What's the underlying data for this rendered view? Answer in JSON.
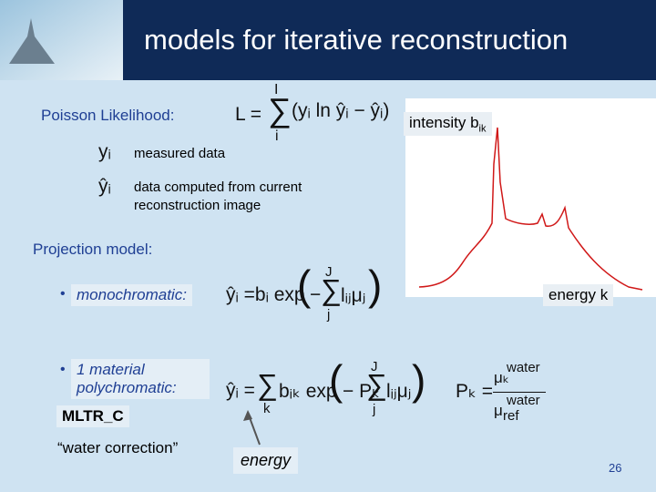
{
  "header": {
    "title": "models for iterative reconstruction"
  },
  "likelihood": {
    "label": "Poisson Likelihood:",
    "lhs": "L =",
    "sum": "∑",
    "sum_top": "I",
    "sum_bottom": "i",
    "body": "(yᵢ ln ŷᵢ − ŷᵢ)"
  },
  "definitions": [
    {
      "symbol": "yᵢ",
      "text": "measured data"
    },
    {
      "symbol": "ŷᵢ",
      "text": "data computed from current reconstruction image"
    }
  ],
  "projection": {
    "label": "Projection model:",
    "mono": {
      "label": "monochromatic:",
      "lhs": "ŷᵢ =bᵢ exp",
      "open": "(",
      "minus": "−",
      "sum": "∑",
      "sum_top": "J",
      "sum_bottom": "j",
      "body": "lᵢⱼμⱼ",
      "close": ")"
    },
    "poly": {
      "label": "1 material polychromatic:",
      "lhs": "ŷᵢ =",
      "sum1": "∑",
      "sum1_bottom": "k",
      "mid": "bᵢₖ exp",
      "open": "(",
      "minus": "− Pₖ",
      "sum2": "∑",
      "sum2_top": "J",
      "sum2_bottom": "j",
      "body": "lᵢⱼμⱼ",
      "close": ")"
    },
    "water": {
      "lhs": "Pₖ =",
      "num": "μₖ",
      "num_sup": "water",
      "den": "μ",
      "den_sub": "ref",
      "den_sup": "water"
    }
  },
  "plot": {
    "ylabel": "intensity  b",
    "ylabel_sub": "ik",
    "xlabel": "energy k"
  },
  "notes": {
    "mltr": "MLTR_C",
    "water": "“water correction”",
    "energy": "energy"
  },
  "page_number": "26"
}
